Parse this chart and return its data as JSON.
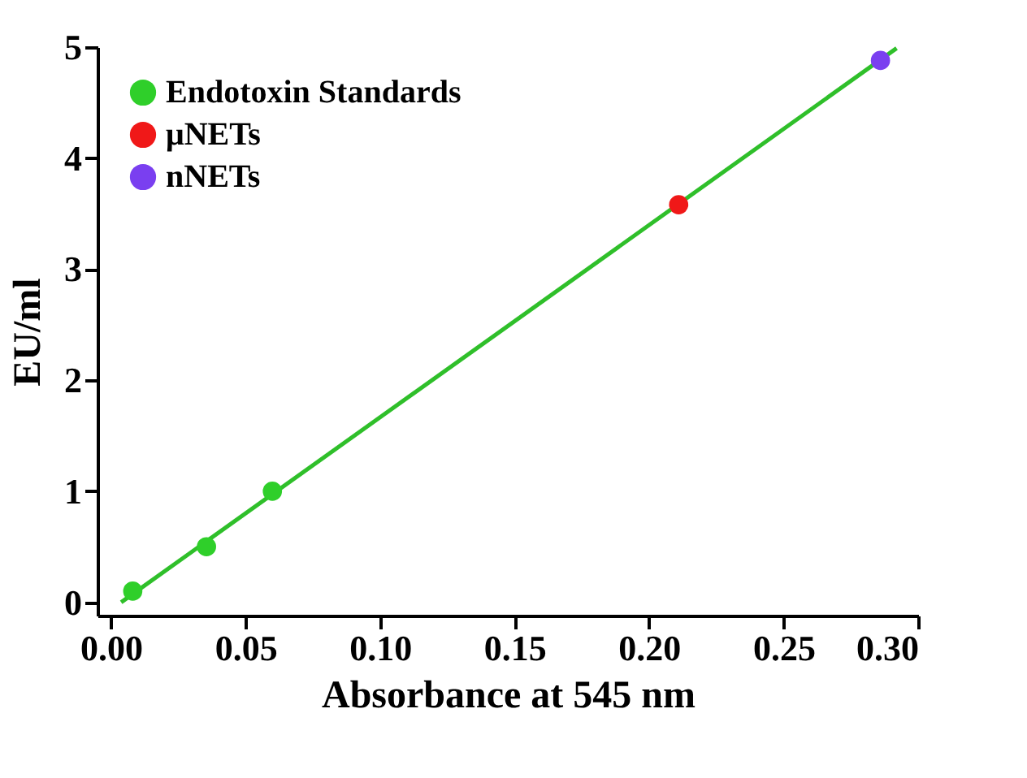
{
  "chart_data": {
    "type": "scatter",
    "xlabel": "Absorbance at 545 nm",
    "ylabel": "EU/ml",
    "xlim": [
      -0.005,
      0.3
    ],
    "xticks": [
      {
        "value": 0,
        "label": "0.00"
      },
      0.05,
      {
        "value": 0.1,
        "label": "0.10"
      },
      0.15,
      {
        "value": 0.2,
        "label": "0.20"
      },
      0.25,
      {
        "value": 0.3,
        "label": "0.30"
      }
    ],
    "ylim": [
      -0.12,
      5
    ],
    "yticks": [
      0,
      1,
      2,
      3,
      4,
      5
    ],
    "grid": false,
    "legend": "top left",
    "marker": "circle",
    "series": [
      {
        "type": "line",
        "marker": "none",
        "color": "#2fbf2a",
        "x": [
          0.0038,
          0.292
        ],
        "values": [
          0,
          4.99
        ],
        "line_style": "solid"
      },
      {
        "name": "Endotoxin Standards",
        "color": "#2fcf2a",
        "x": [
          0.0081,
          0.0355,
          0.06
        ],
        "values": [
          0.1,
          0.5,
          1.0
        ]
      },
      {
        "name": "μNETs",
        "color": "#f01818",
        "x": [
          0.211
        ],
        "values": [
          3.58
        ]
      },
      {
        "name": "nNETs",
        "color": "#7a3ff0",
        "x": [
          0.286
        ],
        "values": [
          4.88
        ]
      }
    ]
  }
}
